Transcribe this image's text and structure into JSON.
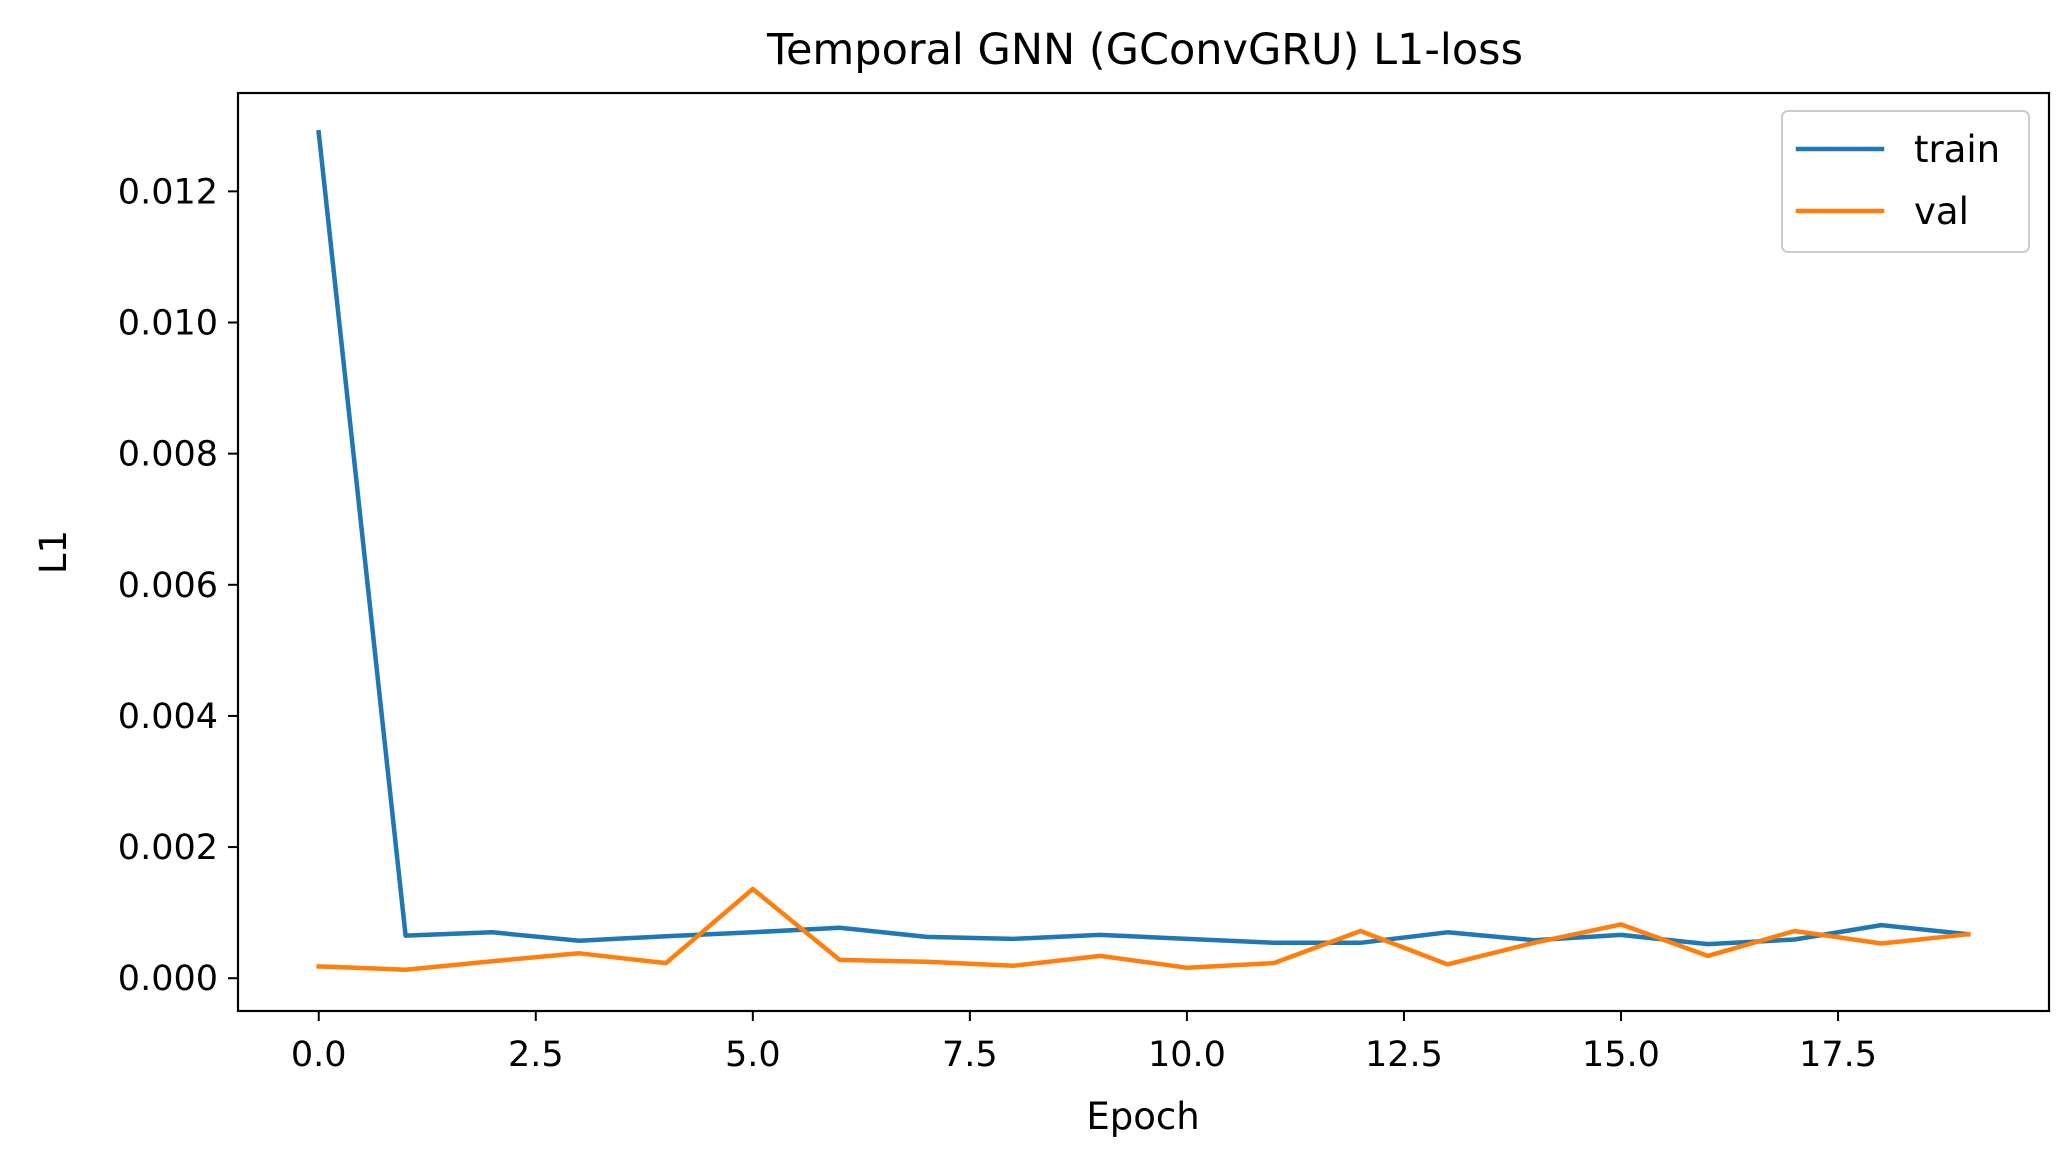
{
  "chart_data": {
    "type": "line",
    "title": "Temporal GNN (GConvGRU) L1-loss",
    "xlabel": "Epoch",
    "ylabel": "L1",
    "xlim": [
      -0.93,
      19.93
    ],
    "ylim": [
      -0.0005,
      0.0135
    ],
    "x_ticks": [
      0,
      2.5,
      5,
      7.5,
      10,
      12.5,
      15,
      17.5
    ],
    "x_tick_labels": [
      "0.0",
      "2.5",
      "5.0",
      "7.5",
      "10.0",
      "12.5",
      "15.0",
      "17.5"
    ],
    "y_ticks": [
      0,
      0.002,
      0.004,
      0.006,
      0.008,
      0.01,
      0.012
    ],
    "y_tick_labels": [
      "0.000",
      "0.002",
      "0.004",
      "0.006",
      "0.008",
      "0.010",
      "0.012"
    ],
    "grid": false,
    "legend_position": "top-right",
    "x": [
      0,
      1,
      2,
      3,
      4,
      5,
      6,
      7,
      8,
      9,
      10,
      11,
      12,
      13,
      14,
      15,
      16,
      17,
      18,
      19
    ],
    "series": [
      {
        "name": "train",
        "color": "#1f77b4",
        "values": [
          0.0129,
          0.00065,
          0.0007,
          0.00057,
          0.00064,
          0.0007,
          0.00077,
          0.00063,
          0.0006,
          0.00066,
          0.0006,
          0.00054,
          0.00054,
          0.0007,
          0.00058,
          0.00066,
          0.00052,
          0.00059,
          0.00081,
          0.00067
        ]
      },
      {
        "name": "val",
        "color": "#ff7f0e",
        "values": [
          0.00018,
          0.00013,
          0.00026,
          0.00038,
          0.00023,
          0.00136,
          0.00028,
          0.00025,
          0.00019,
          0.00034,
          0.00016,
          0.00023,
          0.00072,
          0.00021,
          0.00054,
          0.00082,
          0.00034,
          0.00072,
          0.00053,
          0.00067
        ]
      }
    ]
  }
}
